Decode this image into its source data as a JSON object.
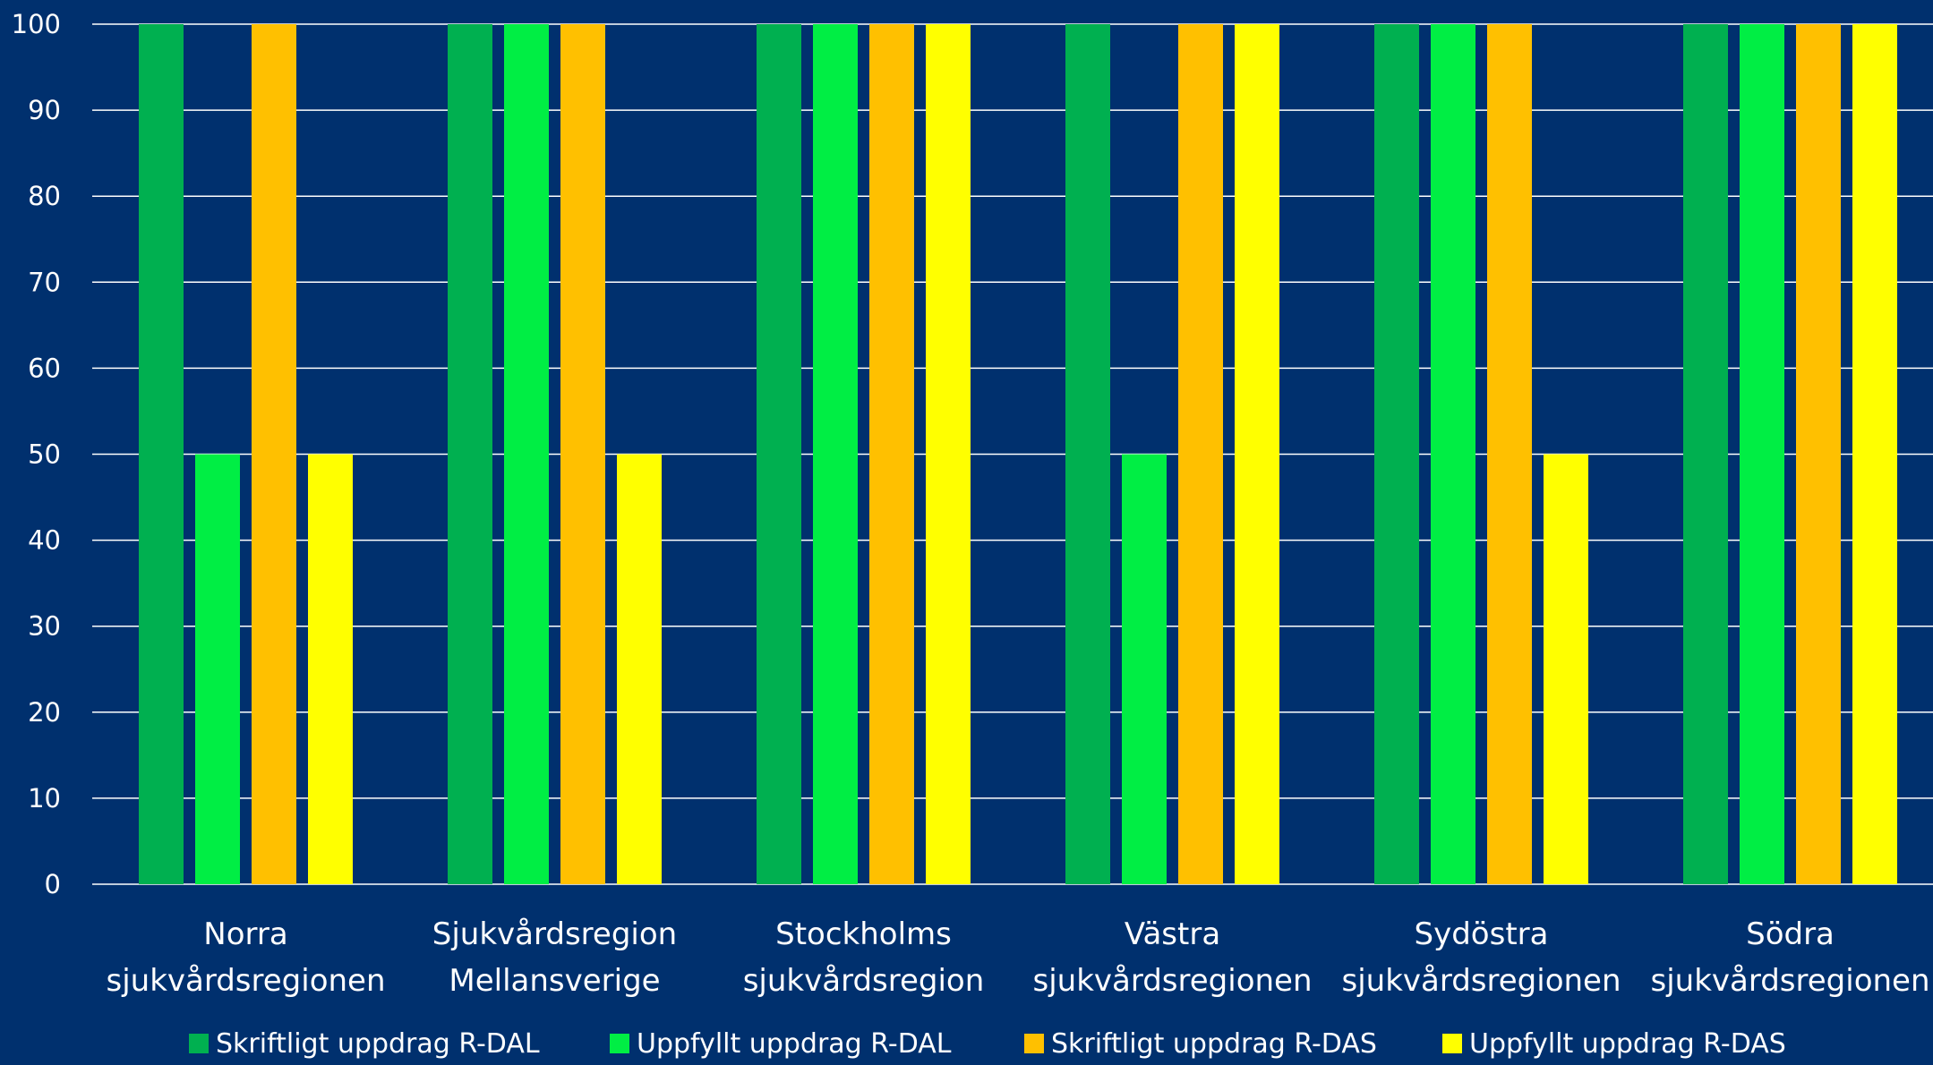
{
  "chart_data": {
    "type": "bar",
    "title": "",
    "xlabel": "",
    "ylabel": "",
    "ylim": [
      0,
      100
    ],
    "yticks": [
      0,
      10,
      20,
      30,
      40,
      50,
      60,
      70,
      80,
      90,
      100
    ],
    "grid": true,
    "legend_position": "bottom",
    "categories": [
      [
        "Norra",
        "sjukvårdsregionen"
      ],
      [
        "Sjukvårdsregion",
        "Mellansverige"
      ],
      [
        "Stockholms",
        "sjukvårdsregion"
      ],
      [
        "Västra",
        "sjukvårdsregionen"
      ],
      [
        "Sydöstra",
        "sjukvårdsregionen"
      ],
      [
        "Södra",
        "sjukvårdsregionen"
      ]
    ],
    "series": [
      {
        "name": "Skriftligt uppdrag R-DAL",
        "color": "#00B050",
        "values": [
          100,
          100,
          100,
          100,
          100,
          100
        ]
      },
      {
        "name": "Uppfyllt uppdrag R-DAL",
        "color": "#00EE44",
        "values": [
          50,
          100,
          100,
          50,
          100,
          100
        ]
      },
      {
        "name": "Skriftligt uppdrag R-DAS",
        "color": "#FFC000",
        "values": [
          100,
          100,
          100,
          100,
          100,
          100
        ]
      },
      {
        "name": "Uppfyllt uppdrag R-DAS",
        "color": "#FFFF00",
        "values": [
          50,
          50,
          100,
          100,
          50,
          100
        ]
      }
    ],
    "colors": {
      "background": "#00306E",
      "text": "#FFFFFF",
      "grid": "#FFFFFF"
    }
  }
}
